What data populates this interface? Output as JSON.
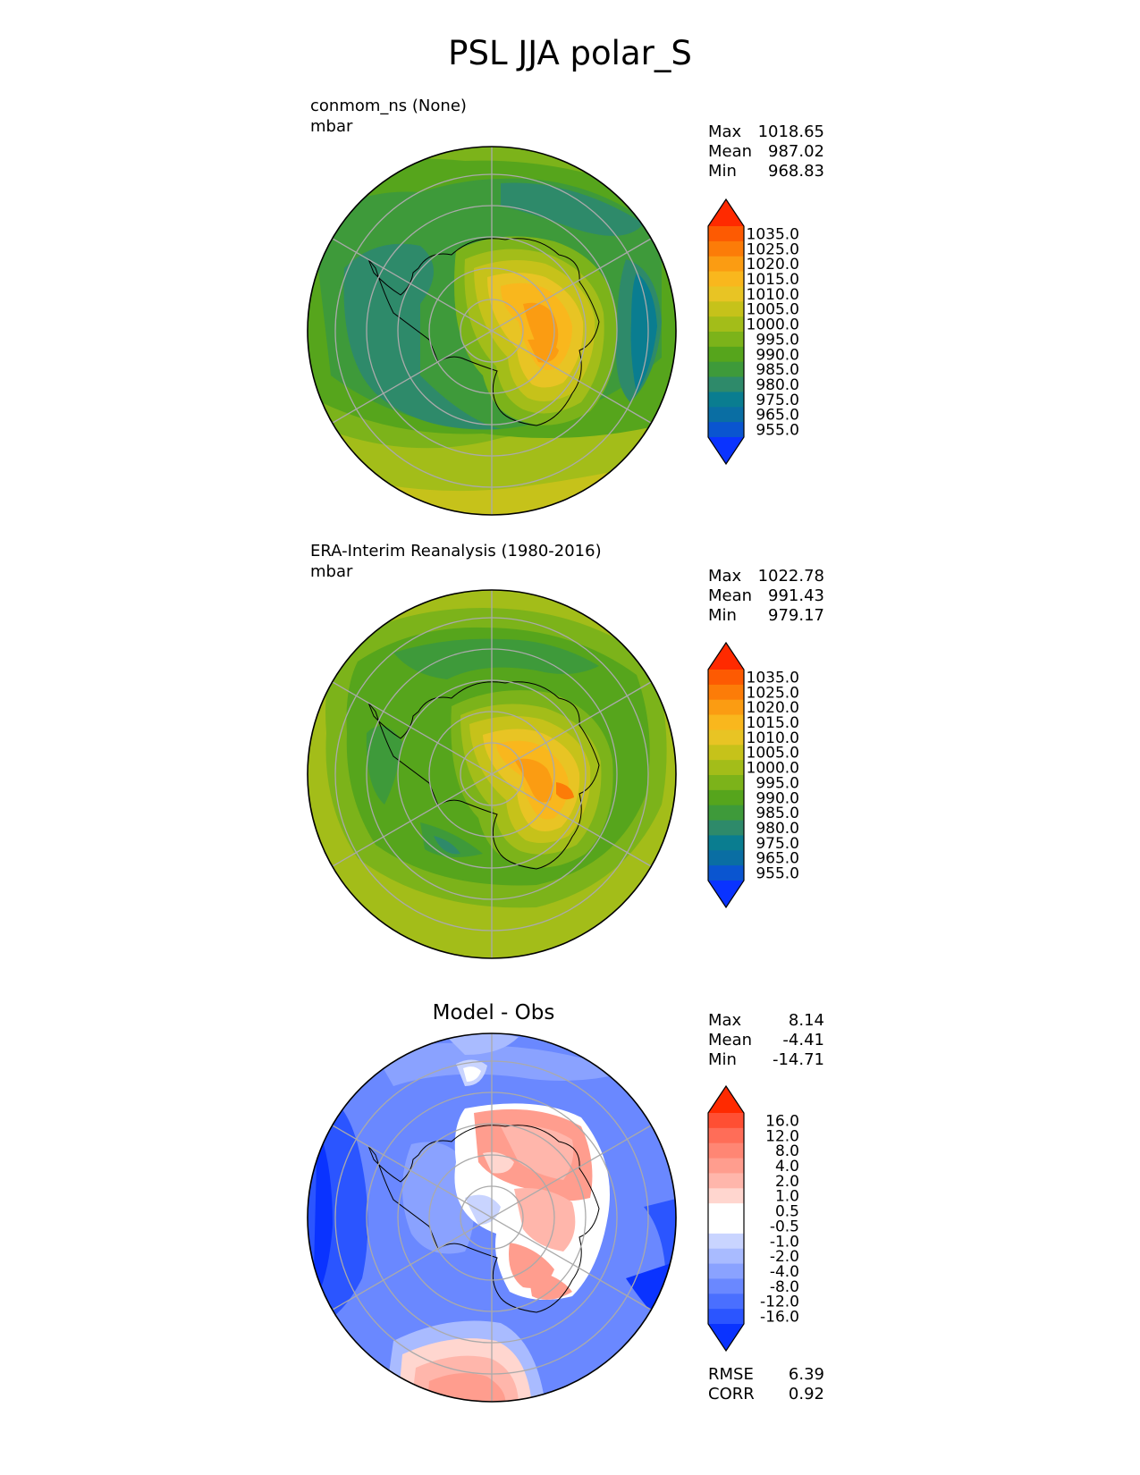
{
  "title": "PSL JJA polar_S",
  "panels": [
    {
      "id": "test",
      "name": "conmom_ns (None)",
      "units": "mbar",
      "stats": [
        {
          "label": "Max",
          "value": "1018.65"
        },
        {
          "label": "Mean",
          "value": "987.02"
        },
        {
          "label": "Min",
          "value": "968.83"
        }
      ],
      "colorbar_ticks": [
        "1035.0",
        "1025.0",
        "1020.0",
        "1015.0",
        "1010.0",
        "1005.0",
        "1000.0",
        "995.0",
        "990.0",
        "985.0",
        "980.0",
        "975.0",
        "965.0",
        "955.0"
      ]
    },
    {
      "id": "ref",
      "name": "ERA-Interim Reanalysis (1980-2016)",
      "units": "mbar",
      "stats": [
        {
          "label": "Max",
          "value": "1022.78"
        },
        {
          "label": "Mean",
          "value": "991.43"
        },
        {
          "label": "Min",
          "value": "979.17"
        }
      ],
      "colorbar_ticks": [
        "1035.0",
        "1025.0",
        "1020.0",
        "1015.0",
        "1010.0",
        "1005.0",
        "1000.0",
        "995.0",
        "990.0",
        "985.0",
        "980.0",
        "975.0",
        "965.0",
        "955.0"
      ]
    },
    {
      "id": "diff",
      "name": "Model - Obs",
      "stats": [
        {
          "label": "Max",
          "value": "8.14"
        },
        {
          "label": "Mean",
          "value": "-4.41"
        },
        {
          "label": "Min",
          "value": "-14.71"
        }
      ],
      "colorbar_ticks": [
        "16.0",
        "12.0",
        "8.0",
        "4.0",
        "2.0",
        "1.0",
        "0.5",
        "-0.5",
        "-1.0",
        "-2.0",
        "-4.0",
        "-8.0",
        "-12.0",
        "-16.0"
      ],
      "metrics": [
        {
          "label": "RMSE",
          "value": "6.39"
        },
        {
          "label": "CORR",
          "value": "0.92"
        }
      ]
    }
  ],
  "colors": {
    "psl_scale": [
      "#0a33ff",
      "#0a55d0",
      "#0a6ea3",
      "#0a7d90",
      "#2e8a6a",
      "#3e9a3a",
      "#56a51c",
      "#7cb31a",
      "#a3bd19",
      "#c6c21a",
      "#e8c424",
      "#f9b71d",
      "#fb9c12",
      "#fc7c08",
      "#fd5a02",
      "#ff2a00"
    ],
    "diff_scale": [
      "#0a33ff",
      "#2b55ff",
      "#4a6fff",
      "#6a88ff",
      "#8aa2ff",
      "#a9bbff",
      "#c9d4ff",
      "#ffffff",
      "#ffffff",
      "#ffd6cf",
      "#ffb6ab",
      "#ff9d8e",
      "#ff8674",
      "#ff6d58",
      "#ff4f33",
      "#ff2a00"
    ]
  }
}
